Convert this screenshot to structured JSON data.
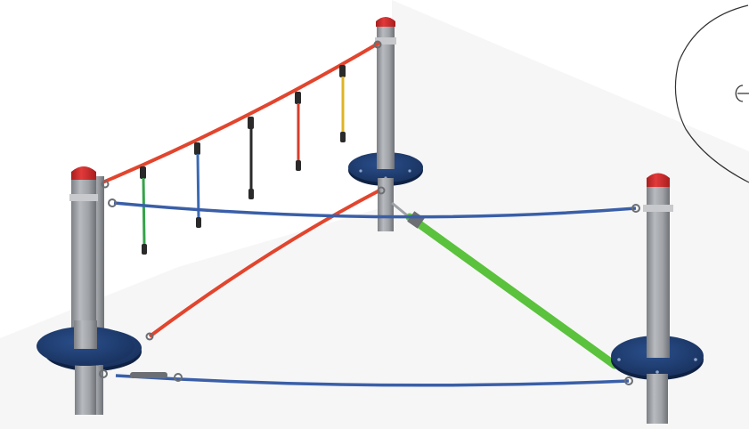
{
  "image": {
    "subject": "playground-rope-course",
    "colors": {
      "background": "#ffffff",
      "floor_shade": "#f3f3f3",
      "post": "#9ea1a5",
      "post_cap": "#d32b2b",
      "base_plate": "#1e3d72",
      "rope_red": "#e2452e",
      "rope_blue": "#3a5fa8",
      "strap_green": "#5ac23c",
      "hanger_green": "#35a34a",
      "hanger_blue": "#3b6ab3",
      "hanger_black": "#2a2a2a",
      "hanger_red": "#d53d2b",
      "hanger_yellow": "#e0b325",
      "inset_line": "#333333"
    }
  }
}
